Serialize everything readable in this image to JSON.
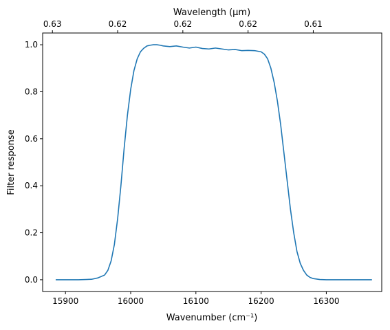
{
  "chart_data": {
    "type": "line",
    "xlabel": "Wavenumber (cm⁻¹)",
    "ylabel": "Filter response",
    "secondary_xlabel": "Wavelength (μm)",
    "xlim": [
      15865,
      16385
    ],
    "ylim": [
      -0.05,
      1.05
    ],
    "x_ticks": [
      15900,
      16000,
      16100,
      16200,
      16300
    ],
    "y_ticks": [
      0.0,
      0.2,
      0.4,
      0.6,
      0.8,
      1.0
    ],
    "y_tick_labels": [
      "0.0",
      "0.2",
      "0.4",
      "0.6",
      "0.8",
      "1.0"
    ],
    "secondary_x_ticks": [
      {
        "at": 15880,
        "label": "0.63"
      },
      {
        "at": 15980,
        "label": "0.62"
      },
      {
        "at": 16080,
        "label": "0.62"
      },
      {
        "at": 16180,
        "label": "0.62"
      },
      {
        "at": 16280,
        "label": "0.61"
      }
    ],
    "grid": false,
    "series": [
      {
        "color": "#1f77b4",
        "x": [
          15885,
          15900,
          15920,
          15940,
          15950,
          15960,
          15965,
          15970,
          15975,
          15980,
          15985,
          15990,
          15995,
          16000,
          16005,
          16010,
          16015,
          16020,
          16025,
          16030,
          16035,
          16040,
          16045,
          16050,
          16060,
          16070,
          16080,
          16090,
          16100,
          16110,
          16120,
          16130,
          16140,
          16150,
          16160,
          16170,
          16180,
          16190,
          16200,
          16205,
          16210,
          16215,
          16220,
          16225,
          16230,
          16235,
          16240,
          16245,
          16250,
          16255,
          16260,
          16265,
          16270,
          16275,
          16280,
          16290,
          16300,
          16320,
          16340,
          16370
        ],
        "y": [
          0.0,
          0.0,
          0.0,
          0.002,
          0.008,
          0.02,
          0.04,
          0.08,
          0.15,
          0.26,
          0.4,
          0.56,
          0.7,
          0.81,
          0.89,
          0.94,
          0.97,
          0.985,
          0.995,
          0.998,
          1.0,
          1.0,
          0.998,
          0.995,
          0.992,
          0.995,
          0.99,
          0.986,
          0.99,
          0.984,
          0.982,
          0.986,
          0.982,
          0.978,
          0.98,
          0.975,
          0.976,
          0.975,
          0.97,
          0.96,
          0.94,
          0.9,
          0.84,
          0.76,
          0.66,
          0.54,
          0.42,
          0.3,
          0.2,
          0.12,
          0.07,
          0.04,
          0.02,
          0.01,
          0.005,
          0.001,
          0.0,
          0.0,
          0.0,
          0.0
        ]
      }
    ]
  }
}
